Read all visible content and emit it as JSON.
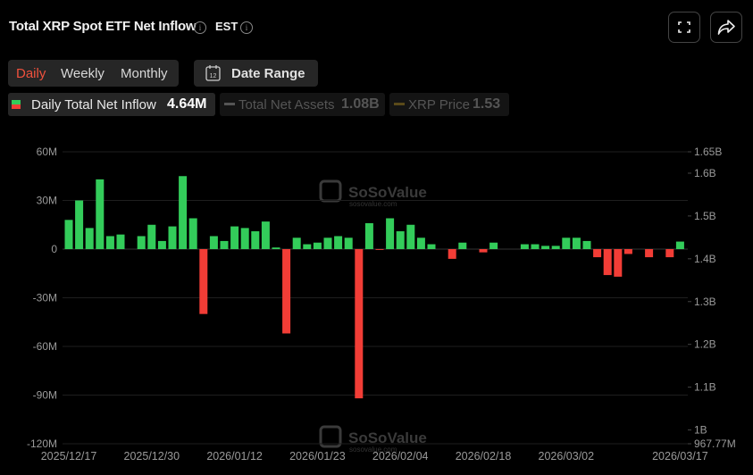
{
  "header": {
    "title": "Total XRP Spot ETF Net Inflow",
    "timezone": "EST"
  },
  "tabs": [
    "Daily",
    "Weekly",
    "Monthly"
  ],
  "date_range": {
    "icon_text": "12",
    "label": "Date Range"
  },
  "legend": [
    {
      "label": "Daily Total Net Inflow",
      "value": "4.64M"
    },
    {
      "label": "Total Net Assets",
      "value": "1.08B"
    },
    {
      "label": "XRP Price",
      "value": "1.53"
    }
  ],
  "chart_data": {
    "type": "bar",
    "watermark": {
      "name": "SoSoValue",
      "site": "sosovalue.com"
    },
    "categories": [
      "2025/12/17",
      null,
      null,
      null,
      null,
      null,
      null,
      null,
      "2025/12/30",
      null,
      null,
      null,
      null,
      null,
      null,
      null,
      "2026/01/12",
      null,
      null,
      null,
      null,
      null,
      null,
      null,
      "2026/01/23",
      null,
      null,
      null,
      null,
      null,
      null,
      null,
      "2026/02/04",
      null,
      null,
      null,
      null,
      null,
      null,
      null,
      "2026/02/18",
      null,
      null,
      null,
      null,
      null,
      null,
      null,
      "2026/03/02",
      null,
      null,
      null,
      null,
      null,
      null,
      null,
      null,
      null,
      null,
      "2026/03/17"
    ],
    "series": [
      {
        "name": "Daily Total Net Inflow",
        "positive_color": "#33cc5a",
        "negative_color": "#f23d36",
        "values": [
          18,
          30,
          13,
          43,
          8,
          9,
          null,
          8,
          15,
          5,
          14,
          45,
          19,
          -40,
          8,
          5,
          14,
          13,
          11,
          17,
          1,
          -52,
          7,
          3,
          4,
          7,
          8,
          7,
          -92,
          16,
          -0.5,
          19,
          11,
          15,
          7,
          3,
          null,
          -6,
          4,
          null,
          -2,
          4,
          null,
          null,
          3,
          3,
          2,
          2,
          7,
          7,
          5,
          -5,
          -16,
          -17,
          -3,
          null,
          -5,
          null,
          -5,
          4.64
        ]
      }
    ],
    "ylim": [
      -120,
      60
    ],
    "yticks": [
      {
        "value": 60,
        "label": "60M"
      },
      {
        "value": 30,
        "label": "30M"
      },
      0,
      {
        "value": -30,
        "label": "-30M"
      },
      {
        "value": -60,
        "label": "-60M"
      },
      {
        "value": -90,
        "label": "-90M"
      },
      {
        "value": -120,
        "label": "-120M"
      }
    ],
    "y2lim": [
      0.96777,
      1.65
    ],
    "y2ticks": [
      {
        "value": 1.65,
        "label": "1.65B"
      },
      {
        "value": 1.6,
        "label": "1.6B"
      },
      {
        "value": 1.5,
        "label": "1.5B"
      },
      {
        "value": 1.4,
        "label": "1.4B"
      },
      {
        "value": 1.3,
        "label": "1.3B"
      },
      {
        "value": 1.2,
        "label": "1.2B"
      },
      {
        "value": 1.1,
        "label": "1.1B"
      },
      {
        "value": 1,
        "label": "1B"
      },
      {
        "value": 0.96777,
        "label": "967.77M"
      }
    ],
    "grid": true
  }
}
